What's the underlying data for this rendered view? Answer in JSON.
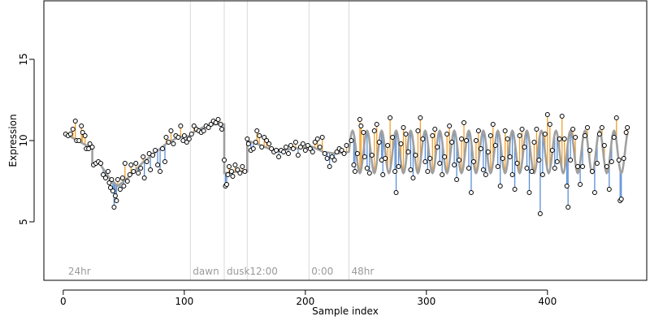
{
  "chart_data": {
    "type": "scatter",
    "xlabel": "Sample index",
    "ylabel": "Expression",
    "xlim": [
      -16,
      482
    ],
    "ylim": [
      1.4,
      18.6
    ],
    "x_ticks": [
      0,
      100,
      200,
      300,
      400
    ],
    "y_ticks": [
      5,
      10,
      15
    ],
    "grid": false,
    "colors": {
      "fit_line": "#a0a0a0",
      "residual_positive": "#f0a030",
      "residual_negative": "#5b8fd6",
      "point_fill": "#ffffff",
      "point_stroke": "#000000",
      "vline": "#d9d9d9",
      "annotation_text": "#9a9a9a"
    },
    "annotations": [
      {
        "label": "24hr",
        "x": 2
      },
      {
        "label": "dawn",
        "x": 105
      },
      {
        "label": "dusk",
        "x": 133
      },
      {
        "label": "12:00",
        "x": 152
      },
      {
        "label": "0:00",
        "x": 203
      },
      {
        "label": "48hr",
        "x": 236
      }
    ],
    "vertical_lines": [
      105,
      133,
      152,
      203,
      236
    ],
    "segments": [
      {
        "x_start": 2,
        "x_end": 24,
        "x": [
          2,
          24
        ],
        "fit": [
          10.4,
          9.5
        ]
      },
      {
        "x_start": 24,
        "x_end": 105,
        "x": [
          24,
          30,
          38,
          45,
          55,
          65,
          75,
          85,
          95,
          105
        ],
        "fit": [
          8.5,
          8.6,
          7.7,
          7.2,
          7.8,
          8.6,
          9.2,
          9.8,
          10.2,
          10.3
        ]
      },
      {
        "x_start": 105,
        "x_end": 133,
        "x": [
          105,
          115,
          125,
          133
        ],
        "fit": [
          10.4,
          10.8,
          11.0,
          11.0
        ]
      },
      {
        "x_start": 133,
        "x_end": 152,
        "x": [
          133,
          140,
          146,
          152
        ],
        "fit": [
          8.0,
          8.05,
          8.1,
          8.1
        ]
      },
      {
        "x_start": 152,
        "x_end": 203,
        "x": [
          152,
          160,
          170,
          180,
          190,
          203
        ],
        "fit": [
          10.0,
          9.8,
          9.5,
          9.4,
          9.5,
          9.6
        ]
      },
      {
        "x_start": 203,
        "x_end": 236,
        "x": [
          203,
          215,
          225,
          236
        ],
        "fit": [
          9.7,
          9.3,
          9.2,
          9.3
        ]
      },
      {
        "x_start": 236,
        "x_end": 466,
        "model": "sine",
        "mean": 9.3,
        "amplitude": 1.3,
        "period": 12,
        "phase": 0
      }
    ],
    "points": [
      {
        "x": 2,
        "y": 10.4
      },
      {
        "x": 4,
        "y": 10.3
      },
      {
        "x": 6,
        "y": 10.4
      },
      {
        "x": 8,
        "y": 10.7
      },
      {
        "x": 10,
        "y": 11.2
      },
      {
        "x": 11,
        "y": 10.0
      },
      {
        "x": 13,
        "y": 10.0
      },
      {
        "x": 15,
        "y": 10.9
      },
      {
        "x": 16,
        "y": 10.5
      },
      {
        "x": 18,
        "y": 10.3
      },
      {
        "x": 19,
        "y": 9.5
      },
      {
        "x": 21,
        "y": 9.5
      },
      {
        "x": 22,
        "y": 9.8
      },
      {
        "x": 24,
        "y": 9.6
      },
      {
        "x": 25,
        "y": 8.5
      },
      {
        "x": 27,
        "y": 8.6
      },
      {
        "x": 29,
        "y": 8.7
      },
      {
        "x": 31,
        "y": 8.6
      },
      {
        "x": 33,
        "y": 7.9
      },
      {
        "x": 35,
        "y": 7.7
      },
      {
        "x": 37,
        "y": 8.1
      },
      {
        "x": 38,
        "y": 7.4
      },
      {
        "x": 39,
        "y": 7.1
      },
      {
        "x": 40,
        "y": 7.6
      },
      {
        "x": 41,
        "y": 6.9
      },
      {
        "x": 42,
        "y": 5.9
      },
      {
        "x": 43,
        "y": 6.6
      },
      {
        "x": 44,
        "y": 6.3
      },
      {
        "x": 45,
        "y": 7.6
      },
      {
        "x": 47,
        "y": 7.0
      },
      {
        "x": 49,
        "y": 7.7
      },
      {
        "x": 50,
        "y": 7.2
      },
      {
        "x": 51,
        "y": 8.6
      },
      {
        "x": 53,
        "y": 7.5
      },
      {
        "x": 55,
        "y": 7.9
      },
      {
        "x": 56,
        "y": 8.5
      },
      {
        "x": 58,
        "y": 8.1
      },
      {
        "x": 60,
        "y": 8.6
      },
      {
        "x": 62,
        "y": 8.0
      },
      {
        "x": 64,
        "y": 8.3
      },
      {
        "x": 66,
        "y": 9.0
      },
      {
        "x": 67,
        "y": 7.7
      },
      {
        "x": 69,
        "y": 8.7
      },
      {
        "x": 71,
        "y": 9.2
      },
      {
        "x": 72,
        "y": 8.2
      },
      {
        "x": 74,
        "y": 9.1
      },
      {
        "x": 76,
        "y": 9.4
      },
      {
        "x": 78,
        "y": 8.5
      },
      {
        "x": 80,
        "y": 8.1
      },
      {
        "x": 82,
        "y": 9.5
      },
      {
        "x": 84,
        "y": 8.7
      },
      {
        "x": 85,
        "y": 10.2
      },
      {
        "x": 87,
        "y": 9.9
      },
      {
        "x": 89,
        "y": 10.6
      },
      {
        "x": 91,
        "y": 9.8
      },
      {
        "x": 93,
        "y": 10.3
      },
      {
        "x": 95,
        "y": 10.2
      },
      {
        "x": 97,
        "y": 10.9
      },
      {
        "x": 99,
        "y": 10.0
      },
      {
        "x": 100,
        "y": 10.3
      },
      {
        "x": 102,
        "y": 9.9
      },
      {
        "x": 104,
        "y": 10.1
      },
      {
        "x": 106,
        "y": 10.4
      },
      {
        "x": 108,
        "y": 10.9
      },
      {
        "x": 110,
        "y": 10.7
      },
      {
        "x": 112,
        "y": 10.6
      },
      {
        "x": 114,
        "y": 10.5
      },
      {
        "x": 116,
        "y": 10.6
      },
      {
        "x": 118,
        "y": 10.9
      },
      {
        "x": 120,
        "y": 10.8
      },
      {
        "x": 122,
        "y": 11.0
      },
      {
        "x": 124,
        "y": 11.2
      },
      {
        "x": 126,
        "y": 11.1
      },
      {
        "x": 128,
        "y": 11.3
      },
      {
        "x": 130,
        "y": 11.0
      },
      {
        "x": 131,
        "y": 10.7
      },
      {
        "x": 133,
        "y": 8.8
      },
      {
        "x": 134,
        "y": 7.2
      },
      {
        "x": 135,
        "y": 7.3
      },
      {
        "x": 136,
        "y": 7.9
      },
      {
        "x": 137,
        "y": 8.4
      },
      {
        "x": 139,
        "y": 8.1
      },
      {
        "x": 140,
        "y": 7.8
      },
      {
        "x": 142,
        "y": 8.5
      },
      {
        "x": 144,
        "y": 8.2
      },
      {
        "x": 146,
        "y": 8.0
      },
      {
        "x": 148,
        "y": 8.4
      },
      {
        "x": 150,
        "y": 8.1
      },
      {
        "x": 152,
        "y": 10.1
      },
      {
        "x": 153,
        "y": 9.8
      },
      {
        "x": 155,
        "y": 9.4
      },
      {
        "x": 157,
        "y": 9.5
      },
      {
        "x": 159,
        "y": 9.9
      },
      {
        "x": 160,
        "y": 10.6
      },
      {
        "x": 162,
        "y": 10.3
      },
      {
        "x": 164,
        "y": 9.6
      },
      {
        "x": 166,
        "y": 10.2
      },
      {
        "x": 168,
        "y": 10.0
      },
      {
        "x": 170,
        "y": 9.8
      },
      {
        "x": 172,
        "y": 9.5
      },
      {
        "x": 174,
        "y": 9.3
      },
      {
        "x": 176,
        "y": 9.4
      },
      {
        "x": 178,
        "y": 9.0
      },
      {
        "x": 180,
        "y": 9.4
      },
      {
        "x": 182,
        "y": 9.3
      },
      {
        "x": 184,
        "y": 9.6
      },
      {
        "x": 186,
        "y": 9.2
      },
      {
        "x": 188,
        "y": 9.7
      },
      {
        "x": 190,
        "y": 9.5
      },
      {
        "x": 192,
        "y": 9.9
      },
      {
        "x": 194,
        "y": 9.1
      },
      {
        "x": 196,
        "y": 9.6
      },
      {
        "x": 198,
        "y": 9.8
      },
      {
        "x": 200,
        "y": 9.4
      },
      {
        "x": 202,
        "y": 9.7
      },
      {
        "x": 204,
        "y": 9.5
      },
      {
        "x": 206,
        "y": 9.3
      },
      {
        "x": 208,
        "y": 9.9
      },
      {
        "x": 210,
        "y": 10.1
      },
      {
        "x": 212,
        "y": 9.6
      },
      {
        "x": 214,
        "y": 10.2
      },
      {
        "x": 216,
        "y": 9.2
      },
      {
        "x": 218,
        "y": 8.9
      },
      {
        "x": 220,
        "y": 8.4
      },
      {
        "x": 222,
        "y": 9.0
      },
      {
        "x": 224,
        "y": 8.8
      },
      {
        "x": 226,
        "y": 9.3
      },
      {
        "x": 228,
        "y": 9.5
      },
      {
        "x": 230,
        "y": 9.4
      },
      {
        "x": 232,
        "y": 9.2
      },
      {
        "x": 234,
        "y": 9.7
      },
      {
        "x": 238,
        "y": 10.0
      },
      {
        "x": 240,
        "y": 8.5
      },
      {
        "x": 241,
        "y": 8.1
      },
      {
        "x": 243,
        "y": 9.2
      },
      {
        "x": 245,
        "y": 11.3
      },
      {
        "x": 246,
        "y": 10.9
      },
      {
        "x": 248,
        "y": 10.5
      },
      {
        "x": 249,
        "y": 9.0
      },
      {
        "x": 251,
        "y": 8.3
      },
      {
        "x": 253,
        "y": 8.0
      },
      {
        "x": 255,
        "y": 9.1
      },
      {
        "x": 257,
        "y": 10.6
      },
      {
        "x": 259,
        "y": 11.0
      },
      {
        "x": 261,
        "y": 9.9
      },
      {
        "x": 263,
        "y": 8.8
      },
      {
        "x": 264,
        "y": 7.9
      },
      {
        "x": 266,
        "y": 8.9
      },
      {
        "x": 268,
        "y": 9.7
      },
      {
        "x": 270,
        "y": 11.4
      },
      {
        "x": 272,
        "y": 10.2
      },
      {
        "x": 274,
        "y": 8.1
      },
      {
        "x": 275,
        "y": 6.8
      },
      {
        "x": 277,
        "y": 8.4
      },
      {
        "x": 279,
        "y": 9.8
      },
      {
        "x": 281,
        "y": 10.8
      },
      {
        "x": 283,
        "y": 10.4
      },
      {
        "x": 285,
        "y": 9.3
      },
      {
        "x": 287,
        "y": 8.2
      },
      {
        "x": 289,
        "y": 7.7
      },
      {
        "x": 291,
        "y": 9.1
      },
      {
        "x": 293,
        "y": 10.6
      },
      {
        "x": 295,
        "y": 11.4
      },
      {
        "x": 297,
        "y": 10.1
      },
      {
        "x": 299,
        "y": 8.7
      },
      {
        "x": 301,
        "y": 8.1
      },
      {
        "x": 303,
        "y": 8.9
      },
      {
        "x": 305,
        "y": 10.3
      },
      {
        "x": 307,
        "y": 10.7
      },
      {
        "x": 309,
        "y": 9.6
      },
      {
        "x": 311,
        "y": 8.6
      },
      {
        "x": 313,
        "y": 7.9
      },
      {
        "x": 315,
        "y": 9.0
      },
      {
        "x": 317,
        "y": 10.4
      },
      {
        "x": 319,
        "y": 10.9
      },
      {
        "x": 321,
        "y": 9.9
      },
      {
        "x": 323,
        "y": 8.5
      },
      {
        "x": 325,
        "y": 7.6
      },
      {
        "x": 327,
        "y": 8.8
      },
      {
        "x": 329,
        "y": 10.1
      },
      {
        "x": 331,
        "y": 11.1
      },
      {
        "x": 333,
        "y": 10.0
      },
      {
        "x": 335,
        "y": 8.3
      },
      {
        "x": 337,
        "y": 6.8
      },
      {
        "x": 339,
        "y": 8.7
      },
      {
        "x": 341,
        "y": 10.0
      },
      {
        "x": 343,
        "y": 10.6
      },
      {
        "x": 345,
        "y": 9.5
      },
      {
        "x": 347,
        "y": 8.2
      },
      {
        "x": 349,
        "y": 7.9
      },
      {
        "x": 351,
        "y": 9.3
      },
      {
        "x": 353,
        "y": 10.3
      },
      {
        "x": 355,
        "y": 11.0
      },
      {
        "x": 357,
        "y": 9.7
      },
      {
        "x": 359,
        "y": 8.4
      },
      {
        "x": 361,
        "y": 7.2
      },
      {
        "x": 363,
        "y": 8.9
      },
      {
        "x": 365,
        "y": 10.6
      },
      {
        "x": 367,
        "y": 10.1
      },
      {
        "x": 369,
        "y": 9.0
      },
      {
        "x": 371,
        "y": 7.9
      },
      {
        "x": 373,
        "y": 7.0
      },
      {
        "x": 375,
        "y": 8.6
      },
      {
        "x": 377,
        "y": 10.3
      },
      {
        "x": 379,
        "y": 10.7
      },
      {
        "x": 381,
        "y": 9.6
      },
      {
        "x": 383,
        "y": 8.3
      },
      {
        "x": 385,
        "y": 6.8
      },
      {
        "x": 387,
        "y": 8.1
      },
      {
        "x": 389,
        "y": 9.9
      },
      {
        "x": 391,
        "y": 10.7
      },
      {
        "x": 393,
        "y": 8.8
      },
      {
        "x": 394,
        "y": 5.5
      },
      {
        "x": 396,
        "y": 7.9
      },
      {
        "x": 398,
        "y": 10.4
      },
      {
        "x": 400,
        "y": 11.6
      },
      {
        "x": 402,
        "y": 11.0
      },
      {
        "x": 404,
        "y": 9.4
      },
      {
        "x": 406,
        "y": 8.3
      },
      {
        "x": 408,
        "y": 8.7
      },
      {
        "x": 410,
        "y": 10.1
      },
      {
        "x": 412,
        "y": 11.5
      },
      {
        "x": 414,
        "y": 10.1
      },
      {
        "x": 416,
        "y": 7.2
      },
      {
        "x": 417,
        "y": 5.9
      },
      {
        "x": 419,
        "y": 8.8
      },
      {
        "x": 421,
        "y": 10.7
      },
      {
        "x": 423,
        "y": 10.2
      },
      {
        "x": 425,
        "y": 8.4
      },
      {
        "x": 427,
        "y": 7.3
      },
      {
        "x": 429,
        "y": 8.4
      },
      {
        "x": 431,
        "y": 10.3
      },
      {
        "x": 433,
        "y": 10.8
      },
      {
        "x": 435,
        "y": 9.4
      },
      {
        "x": 437,
        "y": 8.1
      },
      {
        "x": 439,
        "y": 6.8
      },
      {
        "x": 441,
        "y": 8.6
      },
      {
        "x": 443,
        "y": 10.4
      },
      {
        "x": 445,
        "y": 10.8
      },
      {
        "x": 447,
        "y": 9.7
      },
      {
        "x": 449,
        "y": 8.4
      },
      {
        "x": 451,
        "y": 7.0
      },
      {
        "x": 453,
        "y": 8.7
      },
      {
        "x": 455,
        "y": 10.2
      },
      {
        "x": 457,
        "y": 11.4
      },
      {
        "x": 459,
        "y": 8.8
      },
      {
        "x": 460,
        "y": 6.3
      },
      {
        "x": 461,
        "y": 6.4
      },
      {
        "x": 463,
        "y": 8.9
      },
      {
        "x": 465,
        "y": 10.5
      },
      {
        "x": 466,
        "y": 10.8
      }
    ]
  }
}
